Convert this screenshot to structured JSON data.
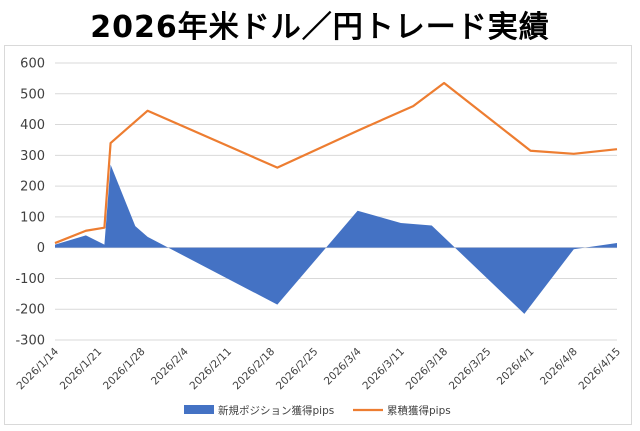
{
  "chart_data": {
    "type": "area",
    "title": "2026年米ドル／円トレード実績",
    "ylim": [
      -300,
      600
    ],
    "y_ticks": [
      600,
      500,
      400,
      300,
      200,
      100,
      0,
      -100,
      -200,
      -300
    ],
    "x_ticks": [
      "2026/1/14",
      "2026/1/21",
      "2026/1/28",
      "2026/2/4",
      "2026/2/11",
      "2026/2/18",
      "2026/2/25",
      "2026/3/4",
      "2026/3/11",
      "2026/3/18",
      "2026/3/25",
      "2026/4/1",
      "2026/4/8",
      "2026/4/15"
    ],
    "x_range": [
      "2026-01-14",
      "2026-04-15"
    ],
    "legend_position": "bottom",
    "series": [
      {
        "name": "新規ポジション獲得pips",
        "type": "area",
        "color": "#4472C4",
        "points": [
          {
            "date": "2026-01-14",
            "value": 10
          },
          {
            "date": "2026-01-19",
            "value": 40
          },
          {
            "date": "2026-01-22",
            "value": 10
          },
          {
            "date": "2026-01-23",
            "value": 270
          },
          {
            "date": "2026-01-27",
            "value": 70
          },
          {
            "date": "2026-01-29",
            "value": 35
          },
          {
            "date": "2026-02-19",
            "value": -185
          },
          {
            "date": "2026-03-04",
            "value": 120
          },
          {
            "date": "2026-03-11",
            "value": 80
          },
          {
            "date": "2026-03-16",
            "value": 72
          },
          {
            "date": "2026-03-31",
            "value": -215
          },
          {
            "date": "2026-04-08",
            "value": -5
          },
          {
            "date": "2026-04-15",
            "value": 15
          }
        ]
      },
      {
        "name": "累積獲得pips",
        "type": "line",
        "color": "#ED7D31",
        "points": [
          {
            "date": "2026-01-14",
            "value": 15
          },
          {
            "date": "2026-01-19",
            "value": 55
          },
          {
            "date": "2026-01-22",
            "value": 65
          },
          {
            "date": "2026-01-23",
            "value": 340
          },
          {
            "date": "2026-01-29",
            "value": 445
          },
          {
            "date": "2026-02-19",
            "value": 260
          },
          {
            "date": "2026-03-04",
            "value": 380
          },
          {
            "date": "2026-03-13",
            "value": 460
          },
          {
            "date": "2026-03-18",
            "value": 535
          },
          {
            "date": "2026-04-01",
            "value": 315
          },
          {
            "date": "2026-04-08",
            "value": 305
          },
          {
            "date": "2026-04-15",
            "value": 320
          }
        ]
      }
    ]
  }
}
